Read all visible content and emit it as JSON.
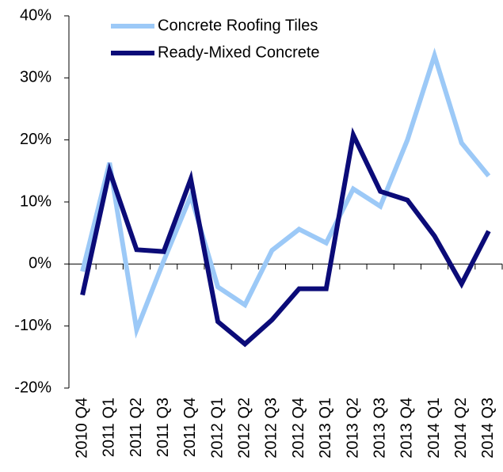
{
  "chart_data": {
    "type": "line",
    "categories": [
      "2010 Q4",
      "2011 Q1",
      "2011 Q2",
      "2011 Q3",
      "2011 Q4",
      "2012 Q1",
      "2012 Q2",
      "2012 Q3",
      "2012 Q4",
      "2013 Q1",
      "2013 Q2",
      "2013 Q3",
      "2013 Q4",
      "2014 Q1",
      "2014 Q2",
      "2014 Q3"
    ],
    "series": [
      {
        "name": "Concrete Roofing Tiles",
        "color": "#9cc9f7",
        "values": [
          -1.2,
          16.3,
          -10.6,
          0.5,
          11,
          -3.7,
          -6.6,
          2.2,
          5.6,
          3.4,
          12.1,
          9.3,
          20,
          33.6,
          19.5,
          14.2
        ]
      },
      {
        "name": "Ready-Mixed Concrete",
        "color": "#0b0b78",
        "values": [
          -5,
          15,
          2.3,
          2.0,
          13.7,
          -9.3,
          -12.9,
          -9,
          -4,
          -4,
          20.8,
          11.7,
          10.3,
          4.5,
          -3.2,
          5.3
        ]
      }
    ],
    "ylim": [
      -20,
      40
    ],
    "yticks": [
      {
        "value": -20,
        "label": "-20%"
      },
      {
        "value": -10,
        "label": "-10%"
      },
      {
        "value": 0,
        "label": "0%"
      },
      {
        "value": 10,
        "label": "10%"
      },
      {
        "value": 20,
        "label": "20%"
      },
      {
        "value": 30,
        "label": "30%"
      },
      {
        "value": 40,
        "label": "40%"
      }
    ],
    "legend": "top"
  }
}
